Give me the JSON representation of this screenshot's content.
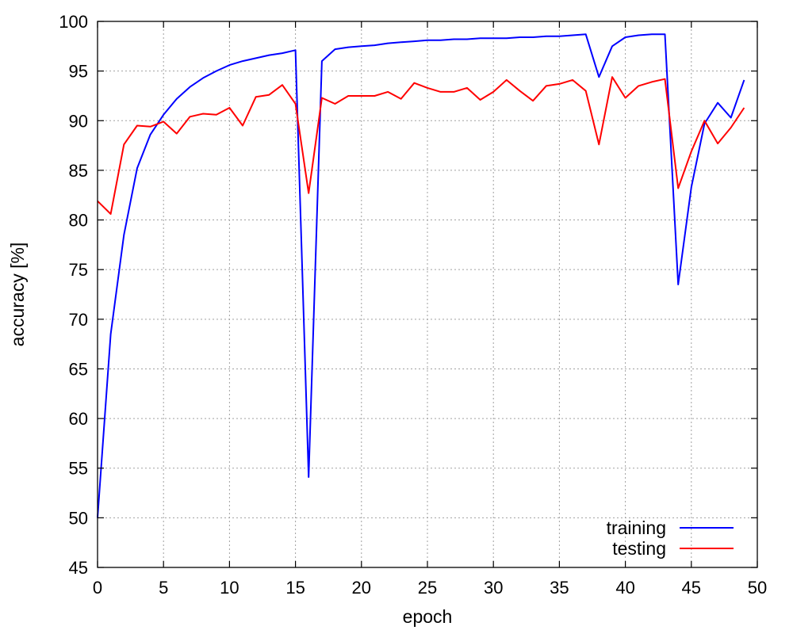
{
  "chart_data": {
    "type": "line",
    "title": "",
    "xlabel": "epoch",
    "ylabel": "accuracy [%]",
    "xlim": [
      0,
      50
    ],
    "ylim": [
      45,
      100
    ],
    "xticks": [
      0,
      5,
      10,
      15,
      20,
      25,
      30,
      35,
      40,
      45,
      50
    ],
    "yticks": [
      45,
      50,
      55,
      60,
      65,
      70,
      75,
      80,
      85,
      90,
      95,
      100
    ],
    "grid": true,
    "legend_position": "bottom-right",
    "x": [
      0,
      1,
      2,
      3,
      4,
      5,
      6,
      7,
      8,
      9,
      10,
      11,
      12,
      13,
      14,
      15,
      16,
      17,
      18,
      19,
      20,
      21,
      22,
      23,
      24,
      25,
      26,
      27,
      28,
      29,
      30,
      31,
      32,
      33,
      34,
      35,
      36,
      37,
      38,
      39,
      40,
      41,
      42,
      43,
      44,
      45,
      46,
      47,
      48,
      49
    ],
    "series": [
      {
        "name": "training",
        "color": "#0000ff",
        "values": [
          50.0,
          68.5,
          78.5,
          85.2,
          88.6,
          90.6,
          92.2,
          93.4,
          94.3,
          95.0,
          95.6,
          96.0,
          96.3,
          96.6,
          96.8,
          97.1,
          54.1,
          96.0,
          97.2,
          97.4,
          97.5,
          97.6,
          97.8,
          97.9,
          98.0,
          98.1,
          98.1,
          98.2,
          98.2,
          98.3,
          98.3,
          98.3,
          98.4,
          98.4,
          98.5,
          98.5,
          98.6,
          98.7,
          94.4,
          97.5,
          98.4,
          98.6,
          98.7,
          98.7,
          73.5,
          83.3,
          89.7,
          91.8,
          90.3,
          94.1
        ]
      },
      {
        "name": "testing",
        "color": "#ff0000",
        "values": [
          81.9,
          80.6,
          87.6,
          89.5,
          89.4,
          89.9,
          88.7,
          90.4,
          90.7,
          90.6,
          91.3,
          89.5,
          92.4,
          92.6,
          93.6,
          91.7,
          82.7,
          92.3,
          91.7,
          92.5,
          92.5,
          92.5,
          92.9,
          92.2,
          93.8,
          93.3,
          92.9,
          92.9,
          93.3,
          92.1,
          92.9,
          94.1,
          93.0,
          92.0,
          93.5,
          93.7,
          94.1,
          93.0,
          87.6,
          94.4,
          92.3,
          93.5,
          93.9,
          94.2,
          83.2,
          86.9,
          90.0,
          87.7,
          89.3,
          91.3
        ]
      }
    ]
  }
}
